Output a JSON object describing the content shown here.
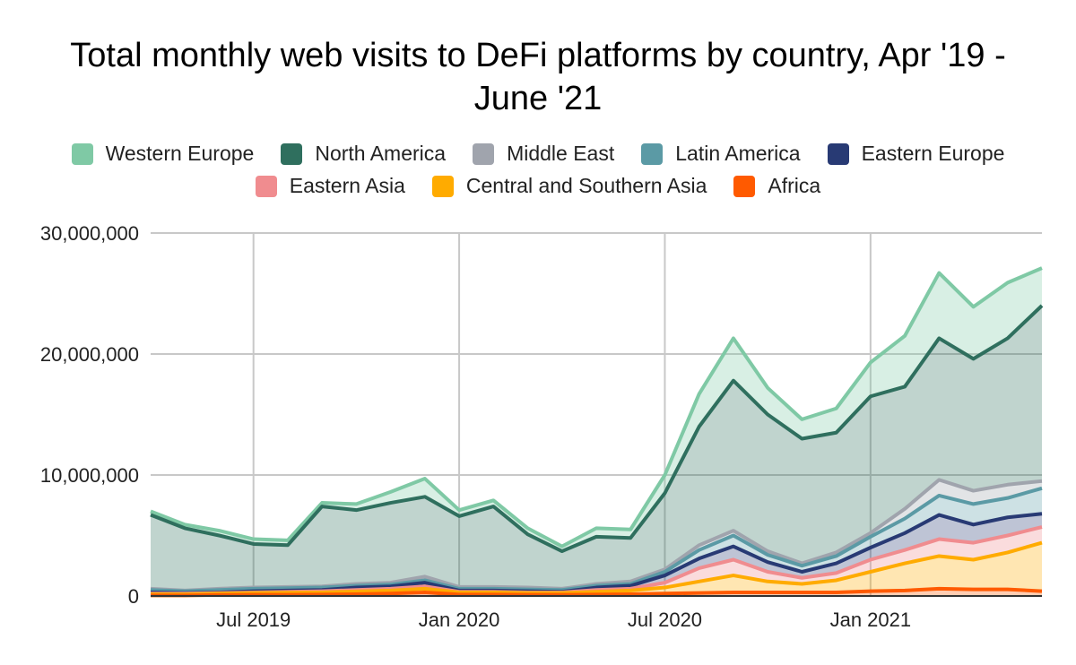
{
  "chart_data": {
    "type": "area",
    "stacked": true,
    "title": "Total monthly web visits to DeFi platforms by country, Apr '19 - June '21",
    "xlabel": "",
    "ylabel": "",
    "ylim": [
      0,
      30000000
    ],
    "yticks": [
      "0",
      "10,000,000",
      "20,000,000",
      "30,000,000"
    ],
    "ytick_values": [
      0,
      10000000,
      20000000,
      30000000
    ],
    "xticks": [
      {
        "label": "Jul 2019",
        "month_index": 3
      },
      {
        "label": "Jan 2020",
        "month_index": 9
      },
      {
        "label": "Jul 2020",
        "month_index": 15
      },
      {
        "label": "Jan 2021",
        "month_index": 21
      }
    ],
    "grid": true,
    "legend_position": "top",
    "x": [
      "2019-04",
      "2019-05",
      "2019-06",
      "2019-07",
      "2019-08",
      "2019-09",
      "2019-10",
      "2019-11",
      "2019-12",
      "2020-01",
      "2020-02",
      "2020-03",
      "2020-04",
      "2020-05",
      "2020-06",
      "2020-07",
      "2020-08",
      "2020-09",
      "2020-10",
      "2020-11",
      "2020-12",
      "2021-01",
      "2021-02",
      "2021-03",
      "2021-04",
      "2021-05",
      "2021-06"
    ],
    "series": [
      {
        "name": "Africa",
        "color": "#ff5a00",
        "values": [
          50000,
          50000,
          80000,
          100000,
          100000,
          120000,
          150000,
          200000,
          300000,
          120000,
          120000,
          100000,
          100000,
          120000,
          150000,
          200000,
          250000,
          300000,
          300000,
          300000,
          300000,
          400000,
          450000,
          600000,
          550000,
          550000,
          400000
        ]
      },
      {
        "name": "Central and Southern Asia",
        "color": "#ffab00",
        "values": [
          100000,
          100000,
          120000,
          150000,
          180000,
          180000,
          230000,
          250000,
          300000,
          180000,
          180000,
          150000,
          150000,
          230000,
          300000,
          500000,
          950000,
          1400000,
          900000,
          700000,
          1000000,
          1600000,
          2250000,
          2700000,
          2450000,
          3050000,
          4000000
        ]
      },
      {
        "name": "Eastern Asia",
        "color": "#f08c8f",
        "values": [
          50000,
          50000,
          50000,
          50000,
          70000,
          100000,
          120000,
          150000,
          200000,
          50000,
          50000,
          50000,
          50000,
          150000,
          150000,
          400000,
          1100000,
          1300000,
          800000,
          500000,
          600000,
          1000000,
          1100000,
          1400000,
          1400000,
          1400000,
          1300000
        ]
      },
      {
        "name": "Eastern Europe",
        "color": "#283a74",
        "values": [
          100000,
          50000,
          50000,
          100000,
          100000,
          100000,
          200000,
          200000,
          300000,
          100000,
          100000,
          100000,
          50000,
          200000,
          250000,
          600000,
          800000,
          1100000,
          800000,
          500000,
          800000,
          1000000,
          1400000,
          2000000,
          1500000,
          1500000,
          1100000
        ]
      },
      {
        "name": "Latin America",
        "color": "#5b9aa5",
        "values": [
          200000,
          150000,
          200000,
          200000,
          200000,
          200000,
          150000,
          150000,
          200000,
          150000,
          150000,
          150000,
          150000,
          150000,
          150000,
          300000,
          700000,
          900000,
          600000,
          500000,
          600000,
          900000,
          1200000,
          1600000,
          1700000,
          1600000,
          2100000
        ]
      },
      {
        "name": "Middle East",
        "color": "#a0a4ad",
        "values": [
          100000,
          50000,
          100000,
          100000,
          100000,
          100000,
          150000,
          150000,
          300000,
          150000,
          150000,
          150000,
          100000,
          150000,
          200000,
          200000,
          400000,
          400000,
          300000,
          200000,
          300000,
          300000,
          800000,
          1300000,
          1100000,
          1100000,
          600000
        ]
      },
      {
        "name": "North America",
        "color": "#2f6f5e",
        "values": [
          6100000,
          5150000,
          4400000,
          3600000,
          3450000,
          6600000,
          6100000,
          6600000,
          6600000,
          5850000,
          6650000,
          4400000,
          3100000,
          3900000,
          3600000,
          6300000,
          9800000,
          12400000,
          11300000,
          10300000,
          9900000,
          11300000,
          10100000,
          11700000,
          10900000,
          12100000,
          14500000
        ]
      },
      {
        "name": "Western Europe",
        "color": "#7fc9a5",
        "values": [
          300000,
          300000,
          400000,
          400000,
          400000,
          300000,
          500000,
          900000,
          1500000,
          500000,
          500000,
          500000,
          400000,
          700000,
          700000,
          1500000,
          2700000,
          3500000,
          2200000,
          1600000,
          2000000,
          2800000,
          4200000,
          5400000,
          4300000,
          4600000,
          3100000
        ]
      }
    ],
    "legend_order": [
      "Western Europe",
      "North America",
      "Middle East",
      "Latin America",
      "Eastern Europe",
      "Eastern Asia",
      "Central and Southern Asia",
      "Africa"
    ]
  }
}
